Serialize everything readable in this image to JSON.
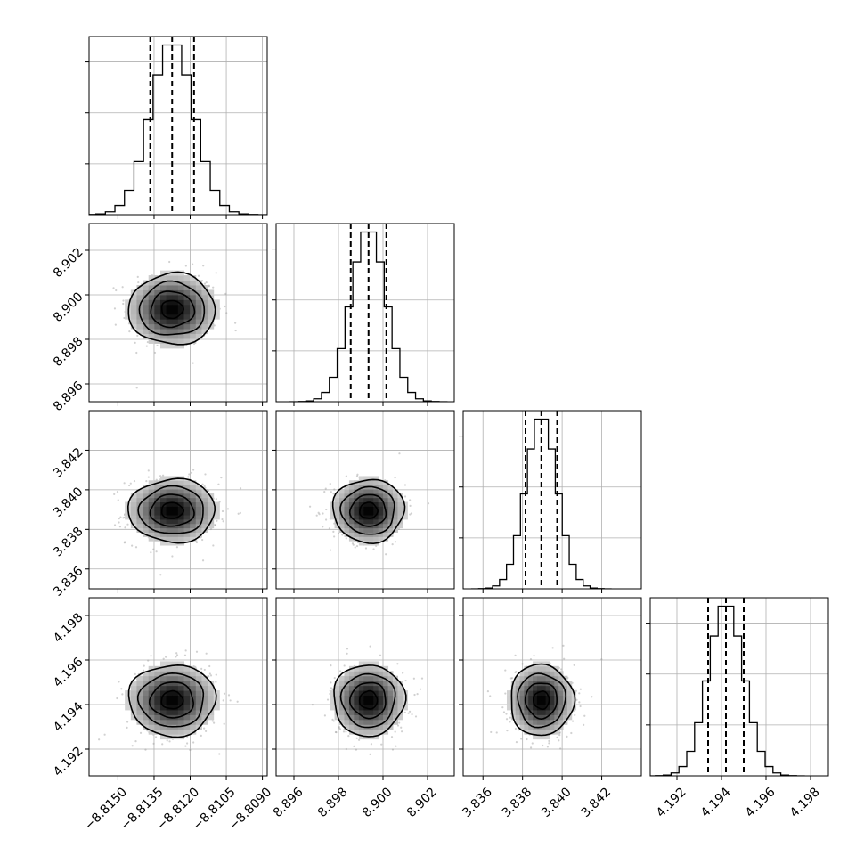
{
  "chart_data": {
    "type": "corner",
    "grid": true,
    "params": [
      {
        "range": [
          -8.8162,
          -8.8088
        ],
        "ticks": [
          -8.815,
          -8.8135,
          -8.812,
          -8.8105,
          -8.809
        ],
        "tick_labels": [
          "−8.8150",
          "−8.8135",
          "−8.8120",
          "−8.8105",
          "−8.8090"
        ],
        "mean": -8.81275,
        "sd": 0.0009,
        "quantiles": [
          -8.81366,
          -8.81275,
          -8.81184
        ]
      },
      {
        "range": [
          8.8952,
          8.9032
        ],
        "ticks": [
          8.896,
          8.898,
          8.9,
          8.902
        ],
        "tick_labels": [
          "8.896",
          "8.898",
          "8.900",
          "8.902"
        ],
        "mean": 8.89935,
        "sd": 0.0008,
        "quantiles": [
          8.89855,
          8.89935,
          8.90015
        ]
      },
      {
        "range": [
          3.835,
          3.844
        ],
        "ticks": [
          3.836,
          3.838,
          3.84,
          3.842
        ],
        "tick_labels": [
          "3.836",
          "3.838",
          "3.840",
          "3.842"
        ],
        "mean": 3.83895,
        "sd": 0.0008,
        "quantiles": [
          3.83815,
          3.83895,
          3.83975
        ]
      },
      {
        "range": [
          4.1908,
          4.1988
        ],
        "ticks": [
          4.192,
          4.194,
          4.196,
          4.198
        ],
        "tick_labels": [
          "4.192",
          "4.194",
          "4.196",
          "4.198"
        ],
        "mean": 4.1942,
        "sd": 0.0008,
        "quantiles": [
          4.1934,
          4.1942,
          4.195
        ]
      }
    ],
    "contour_levels": [
      0.5,
      1.0,
      1.5,
      2.0
    ]
  }
}
